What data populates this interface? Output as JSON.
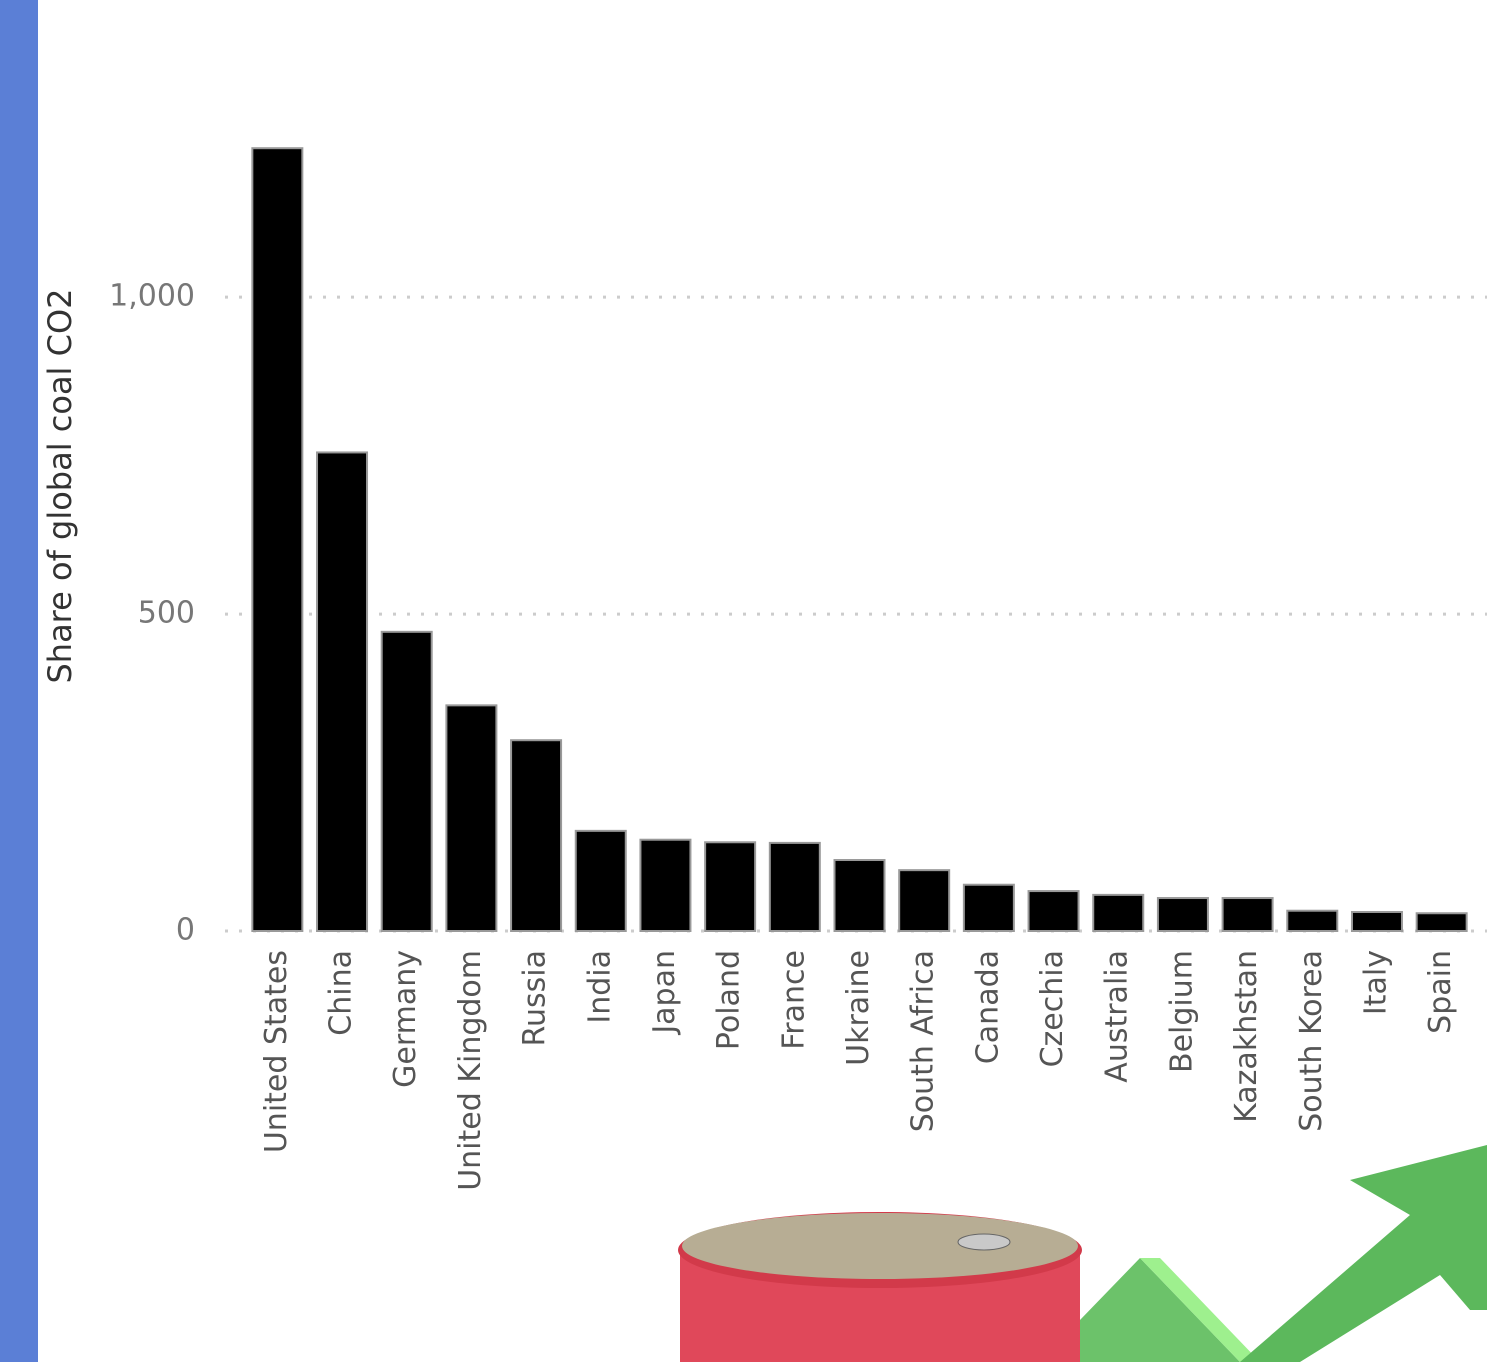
{
  "chart_data": {
    "type": "bar",
    "y_label": "Share of global coal CO2",
    "categories": [
      "United States",
      "China",
      "Germany",
      "United Kingdom",
      "Russia",
      "India",
      "Japan",
      "Poland",
      "France",
      "Ukraine",
      "South Africa",
      "Canada",
      "Czechia",
      "Australia",
      "Belgium",
      "Kazakhstan",
      "South Korea",
      "Italy",
      "Spain"
    ],
    "values": [
      1235,
      755,
      472,
      356,
      301,
      158,
      144,
      140,
      139,
      112,
      96,
      73,
      63,
      57,
      52,
      52,
      32,
      30,
      28
    ],
    "color": "#000000",
    "ylim": [
      0,
      1300
    ],
    "yticks": [
      0,
      500,
      {
        "value": 1000,
        "label": "1,000"
      }
    ],
    "grid": true
  }
}
